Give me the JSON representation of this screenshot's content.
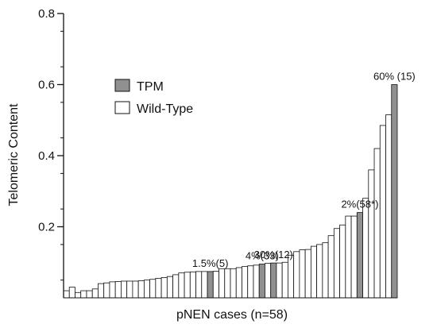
{
  "chart_data": {
    "type": "bar",
    "xlabel": "pNEN cases (n=58)",
    "ylabel": "Telomeric Content",
    "ylim": [
      0,
      0.8
    ],
    "yticks": [
      "0.2",
      "0.4",
      "0.6",
      "0.8"
    ],
    "legend": {
      "placement": "top-left",
      "entries": [
        {
          "label": "TPM",
          "color": "#909090"
        },
        {
          "label": "Wild-Type",
          "color": "#ffffff"
        }
      ]
    },
    "colors": {
      "TPM": "#909090",
      "Wild-Type": "#ffffff"
    },
    "values": [
      0.015,
      0.02,
      0.02,
      0.025,
      0.04,
      0.042,
      0.045,
      0.046,
      0.047,
      0.047,
      0.047,
      0.048,
      0.05,
      0.052,
      0.055,
      0.057,
      0.06,
      0.065,
      0.07,
      0.072,
      0.073,
      0.074,
      0.074,
      0.074,
      0.075,
      0.082,
      0.082,
      0.082,
      0.085,
      0.088,
      0.09,
      0.092,
      0.095,
      0.097,
      0.098,
      0.098,
      0.1,
      0.12,
      0.13,
      0.135,
      0.136,
      0.145,
      0.15,
      0.155,
      0.175,
      0.195,
      0.205,
      0.23,
      0.23,
      0.24,
      0.28,
      0.36,
      0.42,
      0.485,
      0.515,
      0.6,
      0.02,
      0.03
    ],
    "groups": [
      "Wild-Type",
      "Wild-Type",
      "Wild-Type",
      "Wild-Type",
      "Wild-Type",
      "Wild-Type",
      "Wild-Type",
      "Wild-Type",
      "Wild-Type",
      "Wild-Type",
      "Wild-Type",
      "Wild-Type",
      "Wild-Type",
      "Wild-Type",
      "Wild-Type",
      "Wild-Type",
      "Wild-Type",
      "Wild-Type",
      "Wild-Type",
      "Wild-Type",
      "Wild-Type",
      "Wild-Type",
      "Wild-Type",
      "TPM",
      "Wild-Type",
      "Wild-Type",
      "Wild-Type",
      "Wild-Type",
      "Wild-Type",
      "Wild-Type",
      "Wild-Type",
      "Wild-Type",
      "TPM",
      "Wild-Type",
      "TPM",
      "Wild-Type",
      "Wild-Type",
      "Wild-Type",
      "Wild-Type",
      "Wild-Type",
      "Wild-Type",
      "Wild-Type",
      "Wild-Type",
      "Wild-Type",
      "Wild-Type",
      "Wild-Type",
      "Wild-Type",
      "Wild-Type",
      "Wild-Type",
      "TPM",
      "Wild-Type",
      "Wild-Type",
      "Wild-Type",
      "Wild-Type",
      "Wild-Type",
      "TPM",
      "Wild-Type",
      "Wild-Type"
    ],
    "annotations": [
      {
        "text": "1.5%(5)",
        "index": 23
      },
      {
        "text": "4%(33)",
        "index": 32
      },
      {
        "text": "30%(12)",
        "index": 34
      },
      {
        "text": "2%(58*)",
        "index": 49
      },
      {
        "text": "60% (15)",
        "index": 55
      }
    ]
  }
}
